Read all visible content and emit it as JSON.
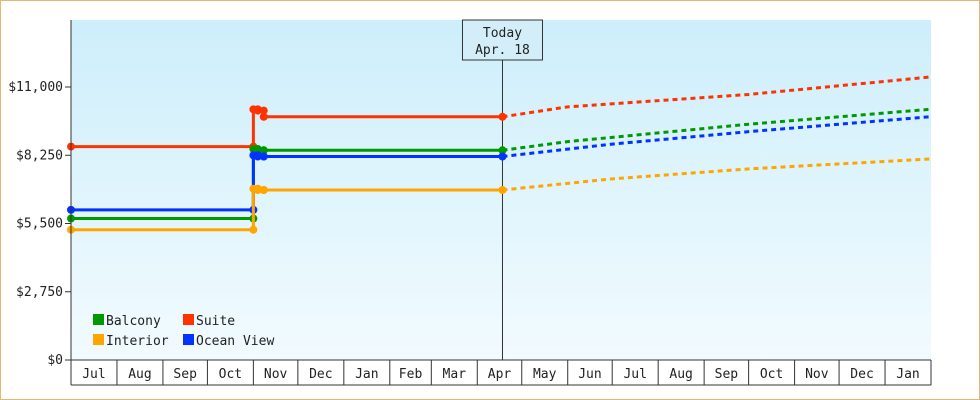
{
  "chart_data": {
    "type": "line",
    "title": "",
    "xlabel": "",
    "ylabel": "",
    "x_months": [
      "Jul",
      "Aug",
      "Sep",
      "Oct",
      "Nov",
      "Dec",
      "Jan",
      "Feb",
      "Mar",
      "Apr",
      "May",
      "Jun",
      "Jul",
      "Aug",
      "Sep",
      "Oct",
      "Nov",
      "Dec",
      "Jan"
    ],
    "x_range": [
      "Jul 1",
      "Jan 31"
    ],
    "ylim": [
      0,
      13700
    ],
    "y_ticks": [
      0,
      2750,
      5500,
      8250,
      11000
    ],
    "y_tick_labels": [
      "$0",
      "$2,750",
      "$5,500",
      "$8,250",
      "$11,000"
    ],
    "today": {
      "label": "Today",
      "date": "Apr. 18"
    },
    "legend": {
      "position": "bottom-left"
    },
    "grid": false,
    "series": [
      {
        "name": "Suite",
        "color": "#ff3300",
        "actual": [
          [
            "Jul 1",
            8600
          ],
          [
            "Nov 1",
            8600
          ],
          [
            "Nov 1",
            10100
          ],
          [
            "Nov 4",
            10100
          ],
          [
            "Nov 4",
            10050
          ],
          [
            "Nov 8",
            10050
          ],
          [
            "Nov 8",
            9800
          ],
          [
            "Apr 18",
            9800
          ]
        ],
        "forecast": [
          [
            "Apr 18",
            9800
          ],
          [
            "Jun 1",
            10200
          ],
          [
            "Oct 1",
            10700
          ],
          [
            "Jan 31",
            11400
          ]
        ]
      },
      {
        "name": "Balcony",
        "color": "#009900",
        "actual": [
          [
            "Jul 1",
            5700
          ],
          [
            "Nov 1",
            5700
          ],
          [
            "Nov 1",
            8500
          ],
          [
            "Nov 4",
            8500
          ],
          [
            "Nov 4",
            8450
          ],
          [
            "Nov 8",
            8450
          ],
          [
            "Nov 8",
            8450
          ],
          [
            "Apr 18",
            8450
          ]
        ],
        "forecast": [
          [
            "Apr 18",
            8450
          ],
          [
            "Jun 1",
            8800
          ],
          [
            "Oct 1",
            9500
          ],
          [
            "Jan 31",
            10100
          ]
        ]
      },
      {
        "name": "Ocean View",
        "color": "#0033ff",
        "actual": [
          [
            "Jul 1",
            6050
          ],
          [
            "Nov 1",
            6050
          ],
          [
            "Nov 1",
            8250
          ],
          [
            "Nov 4",
            8250
          ],
          [
            "Nov 4",
            8200
          ],
          [
            "Nov 8",
            8200
          ],
          [
            "Nov 8",
            8200
          ],
          [
            "Apr 18",
            8200
          ]
        ],
        "forecast": [
          [
            "Apr 18",
            8200
          ],
          [
            "Jul 1",
            8700
          ],
          [
            "Oct 1",
            9200
          ],
          [
            "Jan 31",
            9800
          ]
        ]
      },
      {
        "name": "Interior",
        "color": "#ffa500",
        "actual": [
          [
            "Jul 1",
            5250
          ],
          [
            "Nov 1",
            5250
          ],
          [
            "Nov 1",
            6900
          ],
          [
            "Nov 4",
            6900
          ],
          [
            "Nov 4",
            6850
          ],
          [
            "Nov 8",
            6850
          ],
          [
            "Nov 8",
            6850
          ],
          [
            "Apr 18",
            6850
          ]
        ],
        "forecast": [
          [
            "Apr 18",
            6850
          ],
          [
            "Jul 1",
            7300
          ],
          [
            "Oct 1",
            7700
          ],
          [
            "Jan 31",
            8100
          ]
        ]
      }
    ]
  },
  "legend_items": [
    {
      "name": "Balcony",
      "color": "#009900"
    },
    {
      "name": "Suite",
      "color": "#ff3300"
    },
    {
      "name": "Interior",
      "color": "#ffa500"
    },
    {
      "name": "Ocean View",
      "color": "#0033ff"
    }
  ]
}
